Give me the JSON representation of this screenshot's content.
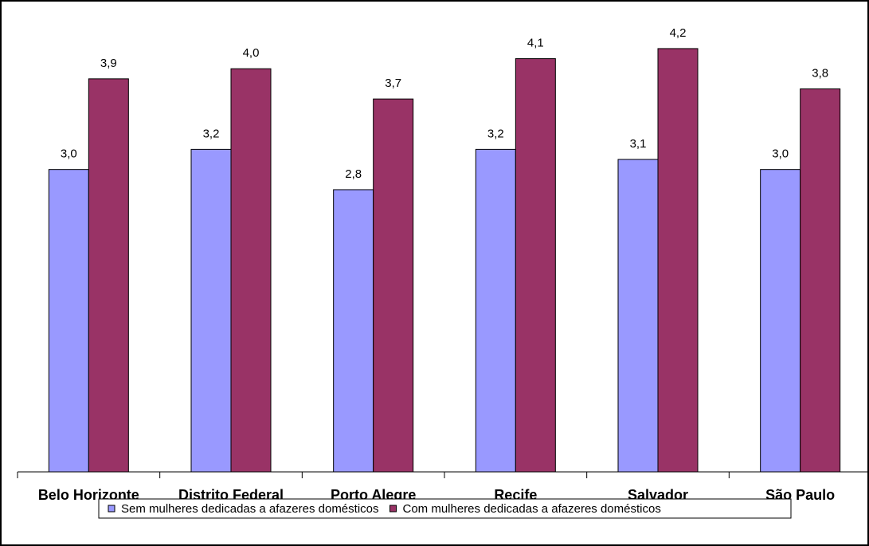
{
  "chart_data": {
    "type": "bar",
    "categories": [
      "Belo Horizonte",
      "Distrito Federal",
      "Porto Alegre",
      "Recife",
      "Salvador",
      "São Paulo"
    ],
    "series": [
      {
        "name": "Sem mulheres dedicadas a afazeres domésticos",
        "color": "#9999ff",
        "values": [
          3.0,
          3.2,
          2.8,
          3.2,
          3.1,
          3.0
        ],
        "value_labels": [
          "3,0",
          "3,2",
          "2,8",
          "3,2",
          "3,1",
          "3,0"
        ]
      },
      {
        "name": "Com mulheres dedicadas a afazeres domésticos",
        "color": "#993366",
        "values": [
          3.9,
          4.0,
          3.7,
          4.1,
          4.2,
          3.8
        ],
        "value_labels": [
          "3,9",
          "4,0",
          "3,7",
          "4,1",
          "4,2",
          "3,8"
        ]
      }
    ],
    "ylim": [
      0,
      4.5
    ],
    "legend": "bottom"
  }
}
